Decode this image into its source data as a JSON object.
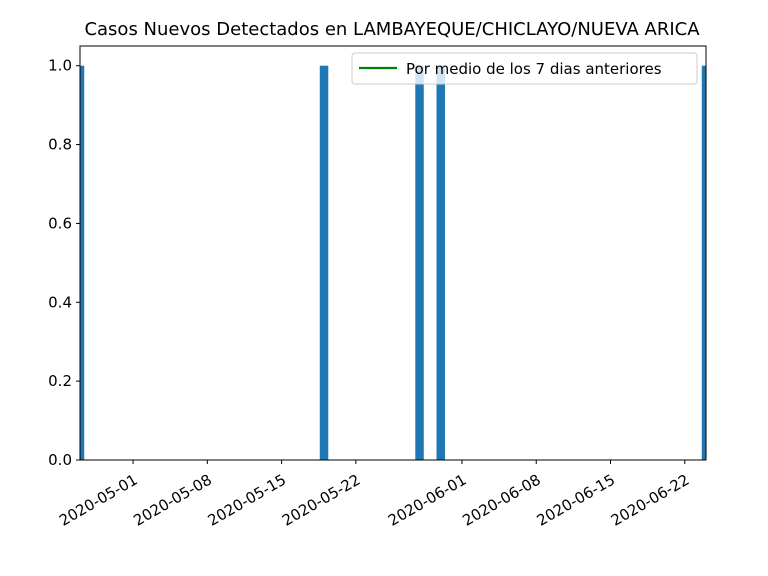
{
  "chart_data": {
    "type": "bar",
    "title": "Casos Nuevos Detectados en LAMBAYEQUE/CHICLAYO/NUEVA ARICA",
    "xlabel": "",
    "ylabel": "",
    "x_axis": "date",
    "xlim": [
      "2020-04-26",
      "2020-06-24"
    ],
    "ylim": [
      0,
      1.05
    ],
    "yticks": [
      0.0,
      0.2,
      0.4,
      0.6,
      0.8,
      1.0
    ],
    "ytick_labels": [
      "0.0",
      "0.2",
      "0.4",
      "0.6",
      "0.8",
      "1.0"
    ],
    "xticks": [
      "2020-05-01",
      "2020-05-08",
      "2020-05-15",
      "2020-05-22",
      "2020-06-01",
      "2020-06-08",
      "2020-06-15",
      "2020-06-22"
    ],
    "series": [
      {
        "type": "bar",
        "color": "#1f77b4",
        "points": [
          {
            "x": "2020-04-26",
            "y": 1
          },
          {
            "x": "2020-05-19",
            "y": 1
          },
          {
            "x": "2020-05-28",
            "y": 1
          },
          {
            "x": "2020-05-30",
            "y": 1
          },
          {
            "x": "2020-06-24",
            "y": 1
          }
        ]
      },
      {
        "type": "line",
        "name": "Por medio de los 7 dias anteriores",
        "color": "#008000",
        "points": []
      }
    ],
    "legend": {
      "position": "top-right",
      "entries": [
        "Por medio de los 7 dias anteriores"
      ]
    },
    "grid": false
  }
}
